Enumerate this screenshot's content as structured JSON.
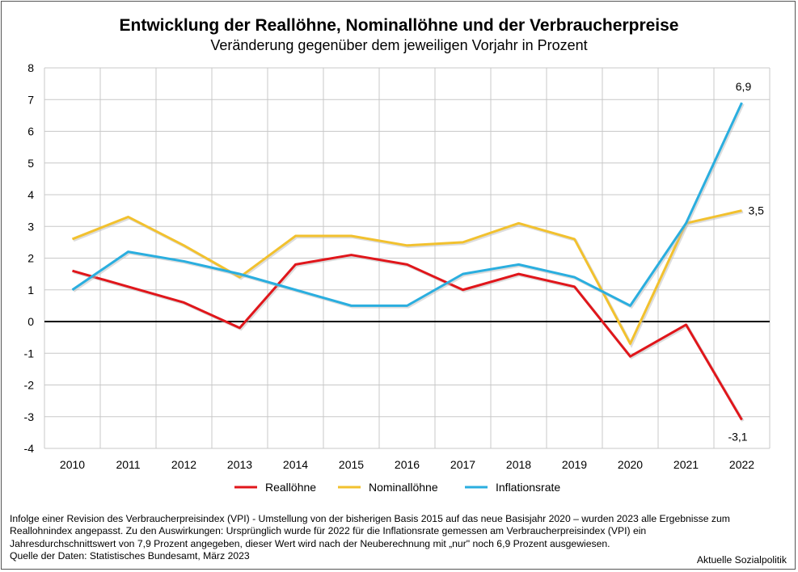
{
  "chart_data": {
    "type": "line",
    "title": "Entwicklung der Reallöhne, Nominallöhne und der Verbraucherpreise",
    "subtitle": "Veränderung gegenüber dem jeweiligen Vorjahr in Prozent",
    "categories": [
      "2010",
      "2011",
      "2012",
      "2013",
      "2014",
      "2015",
      "2016",
      "2017",
      "2018",
      "2019",
      "2020",
      "2021",
      "2022"
    ],
    "yticks": [
      "-4",
      "-3",
      "-2",
      "-1",
      "0",
      "1",
      "2",
      "3",
      "4",
      "5",
      "6",
      "7",
      "8"
    ],
    "ylim": [
      -4,
      8
    ],
    "grid": true,
    "legend_position": "bottom",
    "series": [
      {
        "name": "Reallöhne",
        "color": "#e0161b",
        "values": [
          1.6,
          1.1,
          0.6,
          -0.2,
          1.8,
          2.1,
          1.8,
          1.0,
          1.5,
          1.1,
          -1.1,
          -0.1,
          -3.1
        ]
      },
      {
        "name": "Nominallöhne",
        "color": "#f2c12e",
        "values": [
          2.6,
          3.3,
          2.4,
          1.4,
          2.7,
          2.7,
          2.4,
          2.5,
          3.1,
          2.6,
          -0.7,
          3.1,
          3.5
        ]
      },
      {
        "name": "Inflationsrate",
        "color": "#2aaedf",
        "values": [
          1.0,
          2.2,
          1.9,
          1.5,
          1.0,
          0.5,
          0.5,
          1.5,
          1.8,
          1.4,
          0.5,
          3.1,
          6.9
        ]
      }
    ],
    "annotations": [
      {
        "text": "6,9",
        "series": "Inflationsrate",
        "category": "2022"
      },
      {
        "text": "3,5",
        "series": "Nominallöhne",
        "category": "2022"
      },
      {
        "text": "-3,1",
        "series": "Reallöhne",
        "category": "2022"
      }
    ]
  },
  "footer": {
    "note_lines": [
      "Infolge einer Revision des Verbraucherpreisindex (VPI) - Umstellung von der bisherigen Basis 2015 auf das neue Basisjahr 2020 – wurden 2023 alle Ergebnisse zum",
      "Reallohnindex angepasst. Zu den Auswirkungen: Ursprünglich wurde für 2022 für die Inflationsrate gemessen am Verbraucherpreisindex (VPI) ein",
      "Jahresdurchschnittswert von 7,9 Prozent angegeben, dieser Wert wird nach der Neuberechnung mit „nur\" noch 6,9 Prozent ausgewiesen.",
      "Quelle der Daten: Statistisches Bundesamt, März 2023"
    ],
    "brand": "Aktuelle Sozialpolitik"
  }
}
